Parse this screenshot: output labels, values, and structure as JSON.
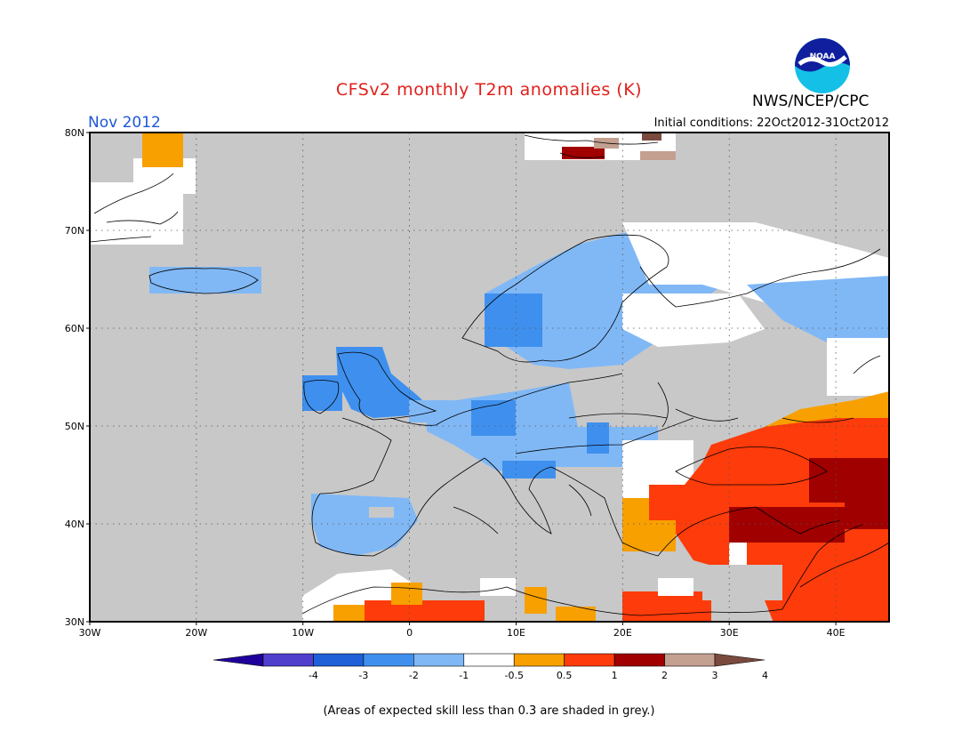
{
  "title": "CFSv2 monthly T2m anomalies (K)",
  "month_label": "Nov 2012",
  "initial_conditions": "Initial conditions: 22Oct2012-31Oct2012",
  "agency": "NWS/NCEP/CPC",
  "logo_text": "NOAA",
  "note": "(Areas of expected skill less than 0.3 are shaded in grey.)",
  "map": {
    "lon_range": [
      -30,
      45
    ],
    "lat_range": [
      30,
      80
    ],
    "lat_ticks": [
      "30N",
      "40N",
      "50N",
      "60N",
      "70N",
      "80N"
    ],
    "lon_ticks": [
      "30W",
      "20W",
      "10W",
      "0",
      "10E",
      "20E",
      "30E",
      "40E"
    ],
    "grid": "dotted",
    "background_color": "#c8c8c8"
  },
  "colorbar": {
    "levels": [
      "-4",
      "-3",
      "-2",
      "-1",
      "-0.5",
      "0.5",
      "1",
      "2",
      "3",
      "4"
    ],
    "colors": [
      "#20009a",
      "#4f3fcc",
      "#1f60d8",
      "#3f90ee",
      "#80b8f6",
      "#ffffff",
      "#f8a000",
      "#fe3b0a",
      "#a00000",
      "#c4a090",
      "#7a4a3e"
    ]
  }
}
